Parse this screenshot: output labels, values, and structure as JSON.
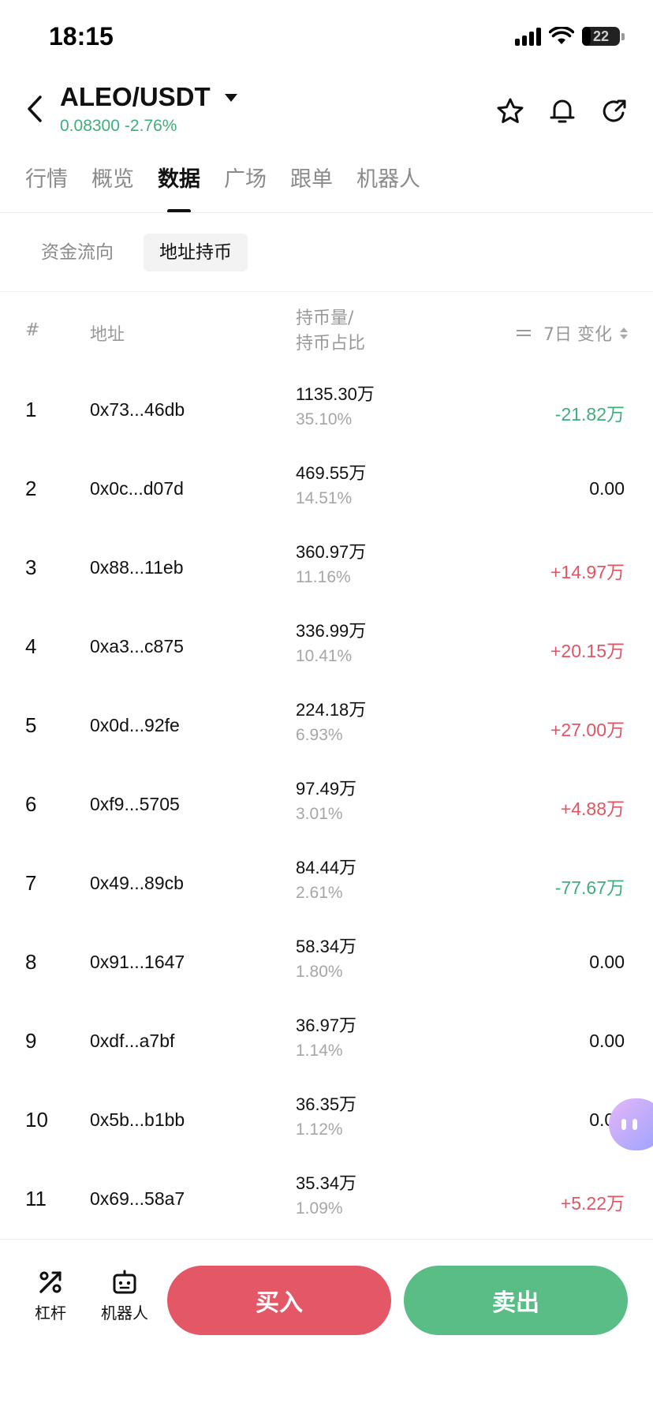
{
  "status_bar": {
    "time": "18:15",
    "battery": "22",
    "battery_level": 0.22
  },
  "header": {
    "pair": "ALEO/USDT",
    "price": "0.08300",
    "change": "-2.76%"
  },
  "tabs": [
    {
      "label": "行情",
      "active": false
    },
    {
      "label": "概览",
      "active": false
    },
    {
      "label": "数据",
      "active": true
    },
    {
      "label": "广场",
      "active": false
    },
    {
      "label": "跟单",
      "active": false
    },
    {
      "label": "机器人",
      "active": false
    }
  ],
  "subtabs": [
    {
      "label": "资金流向",
      "active": false
    },
    {
      "label": "地址持币",
      "active": true
    }
  ],
  "table": {
    "headers": {
      "rank": "#",
      "address": "地址",
      "amount_line1": "持币量/",
      "amount_line2": "持币占比",
      "change": "7日 变化"
    },
    "rows": [
      {
        "rank": "1",
        "address": "0x73...46db",
        "amount": "1135.30万",
        "percent": "35.10%",
        "change": "-21.82万",
        "dir": "neg"
      },
      {
        "rank": "2",
        "address": "0x0c...d07d",
        "amount": "469.55万",
        "percent": "14.51%",
        "change": "0.00",
        "dir": "zero"
      },
      {
        "rank": "3",
        "address": "0x88...11eb",
        "amount": "360.97万",
        "percent": "11.16%",
        "change": "+14.97万",
        "dir": "pos"
      },
      {
        "rank": "4",
        "address": "0xa3...c875",
        "amount": "336.99万",
        "percent": "10.41%",
        "change": "+20.15万",
        "dir": "pos"
      },
      {
        "rank": "5",
        "address": "0x0d...92fe",
        "amount": "224.18万",
        "percent": "6.93%",
        "change": "+27.00万",
        "dir": "pos"
      },
      {
        "rank": "6",
        "address": "0xf9...5705",
        "amount": "97.49万",
        "percent": "3.01%",
        "change": "+4.88万",
        "dir": "pos"
      },
      {
        "rank": "7",
        "address": "0x49...89cb",
        "amount": "84.44万",
        "percent": "2.61%",
        "change": "-77.67万",
        "dir": "neg"
      },
      {
        "rank": "8",
        "address": "0x91...1647",
        "amount": "58.34万",
        "percent": "1.80%",
        "change": "0.00",
        "dir": "zero"
      },
      {
        "rank": "9",
        "address": "0xdf...a7bf",
        "amount": "36.97万",
        "percent": "1.14%",
        "change": "0.00",
        "dir": "zero"
      },
      {
        "rank": "10",
        "address": "0x5b...b1bb",
        "amount": "36.35万",
        "percent": "1.12%",
        "change": "0.00",
        "dir": "zero"
      },
      {
        "rank": "11",
        "address": "0x69...58a7",
        "amount": "35.34万",
        "percent": "1.09%",
        "change": "+5.22万",
        "dir": "pos"
      }
    ]
  },
  "bottom_bar": {
    "lever_label": "杠杆",
    "robot_label": "机器人",
    "buy_label": "买入",
    "sell_label": "卖出"
  },
  "colors": {
    "up": "#e05563",
    "down": "#3fae7d",
    "buy": "#e45766",
    "sell": "#5bbd86"
  },
  "icons": [
    "back-arrow-icon",
    "dropdown-caret-icon",
    "star-icon",
    "bell-icon",
    "share-icon",
    "swap-icon",
    "sort-icon",
    "lever-icon",
    "robot-icon",
    "assistant-icon"
  ]
}
